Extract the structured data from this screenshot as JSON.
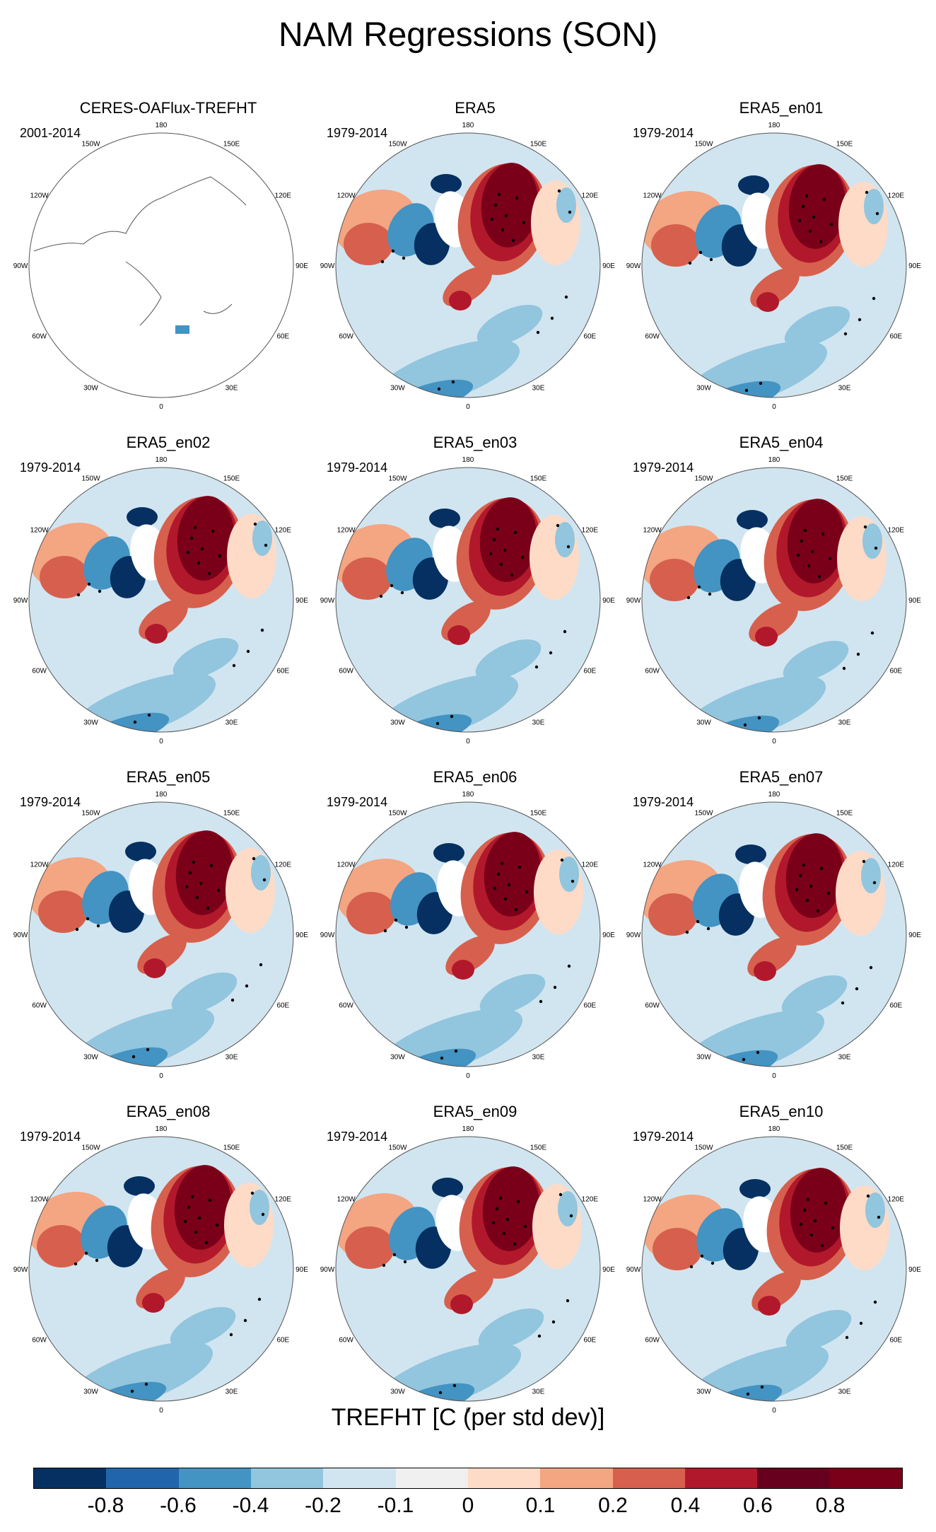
{
  "title": "NAM Regressions (SON)",
  "lon_labels": [
    "180",
    "150E",
    "120E",
    "90E",
    "60E",
    "30E",
    "0",
    "30W",
    "60W",
    "90W",
    "120W",
    "150W"
  ],
  "panels": [
    {
      "name": "CERES-OAFlux-TREFHT",
      "years": "2001-2014",
      "filled": false
    },
    {
      "name": "ERA5",
      "years": "1979-2014",
      "filled": true
    },
    {
      "name": "ERA5_en01",
      "years": "1979-2014",
      "filled": true
    },
    {
      "name": "ERA5_en02",
      "years": "1979-2014",
      "filled": true
    },
    {
      "name": "ERA5_en03",
      "years": "1979-2014",
      "filled": true
    },
    {
      "name": "ERA5_en04",
      "years": "1979-2014",
      "filled": true
    },
    {
      "name": "ERA5_en05",
      "years": "1979-2014",
      "filled": true
    },
    {
      "name": "ERA5_en06",
      "years": "1979-2014",
      "filled": true
    },
    {
      "name": "ERA5_en07",
      "years": "1979-2014",
      "filled": true
    },
    {
      "name": "ERA5_en08",
      "years": "1979-2014",
      "filled": true
    },
    {
      "name": "ERA5_en09",
      "years": "1979-2014",
      "filled": true
    },
    {
      "name": "ERA5_en10",
      "years": "1979-2014",
      "filled": true
    }
  ],
  "colorbar": {
    "title": "TREFHT [C (per std dev)]",
    "levels": [
      "-0.8",
      "-0.6",
      "-0.4",
      "-0.2",
      "-0.1",
      "0",
      "0.1",
      "0.2",
      "0.4",
      "0.6",
      "0.8"
    ],
    "colors": [
      "#053061",
      "#2166ac",
      "#4393c3",
      "#92c5de",
      "#d1e5f0",
      "#f0f0f0",
      "#fddbc7",
      "#f4a582",
      "#d6604d",
      "#b2182b",
      "#67001f",
      "#7a0019"
    ]
  },
  "palette": {
    "strong_warm": "#7a0019",
    "warm": "#b2182b",
    "mid_warm": "#d6604d",
    "light_warm": "#f4a582",
    "pale_warm": "#fddbc7",
    "neutral": "#f0f0f0",
    "pale_cool": "#d1e5f0",
    "light_cool": "#92c5de",
    "mid_cool": "#4393c3",
    "strong_cool": "#053061"
  }
}
